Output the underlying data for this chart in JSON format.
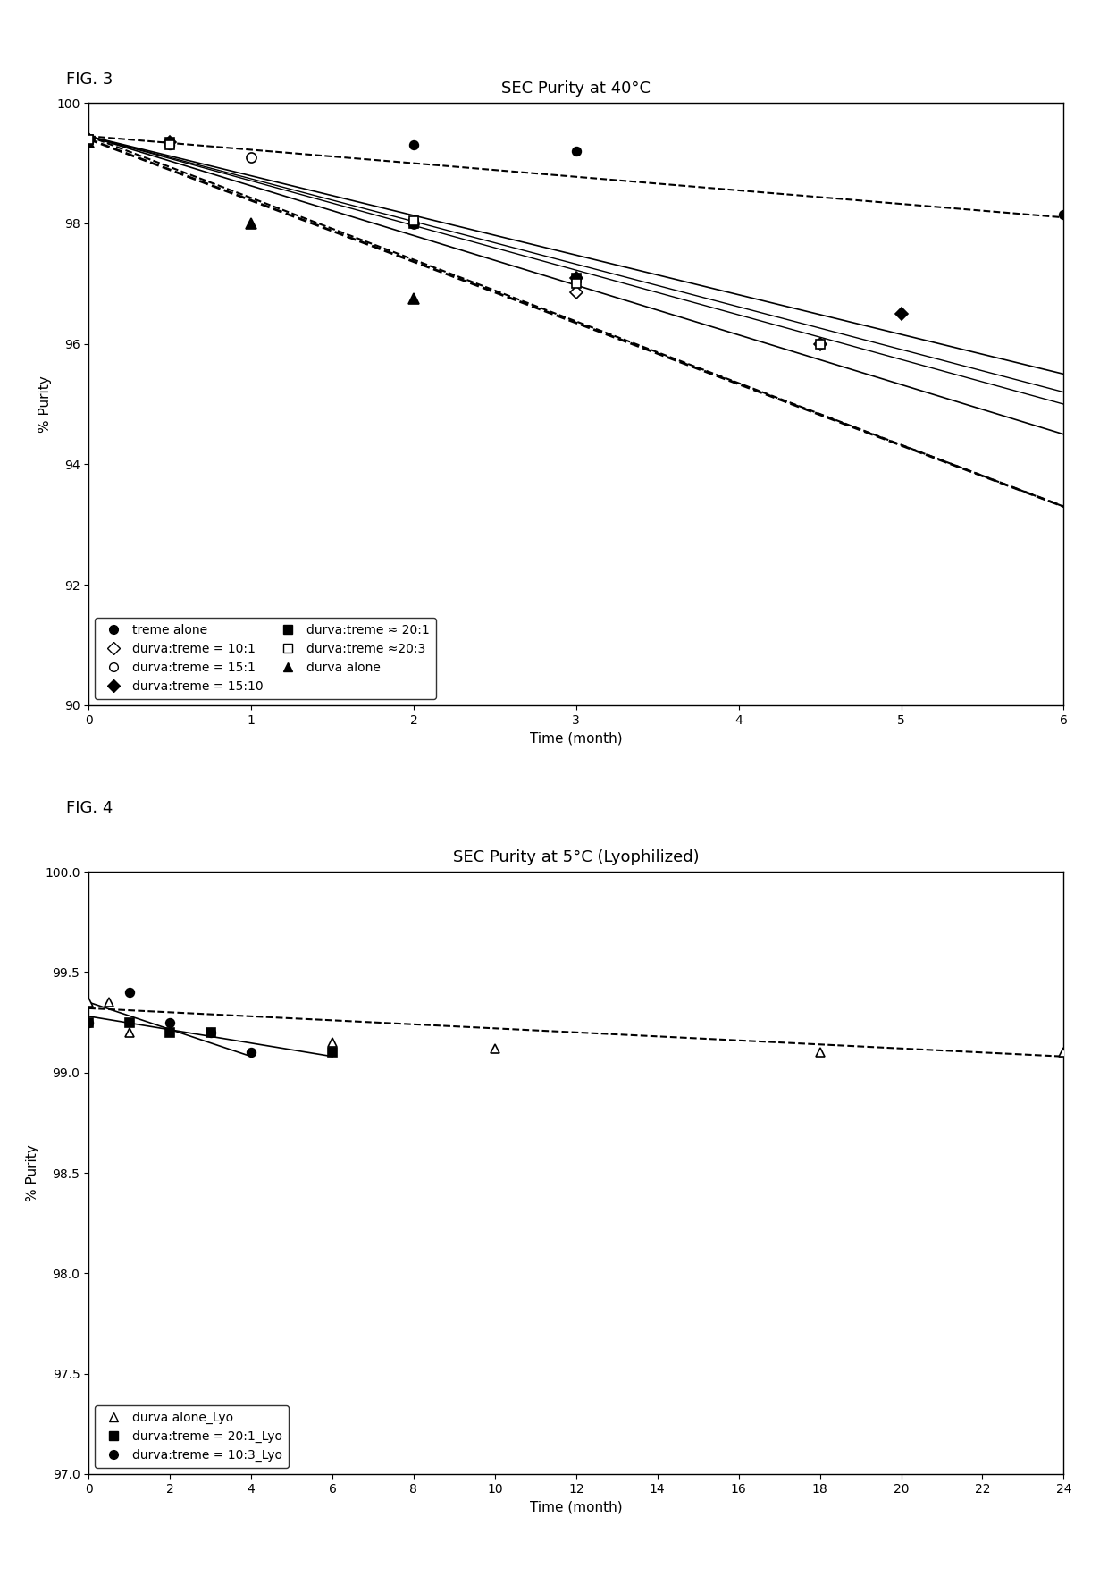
{
  "fig3": {
    "title": "SEC Purity at 40°C",
    "xlabel": "Time (month)",
    "ylabel": "% Purity",
    "xlim": [
      0,
      6
    ],
    "ylim": [
      90.0,
      100.0
    ],
    "yticks": [
      90.0,
      92.0,
      94.0,
      96.0,
      98.0,
      100.0
    ],
    "xticks": [
      0,
      1,
      2,
      3,
      4,
      5,
      6
    ],
    "series": [
      {
        "label": "treme alone",
        "x": [
          0,
          0.5,
          2,
          3,
          6
        ],
        "y": [
          99.4,
          99.3,
          99.3,
          99.2,
          98.15
        ],
        "marker": "o",
        "fillstyle": "full",
        "color": "black",
        "markersize": 7,
        "linestyle": "--",
        "linewidth": 1.5,
        "trend": [
          0,
          6,
          99.45,
          98.1
        ]
      },
      {
        "label": "durva:treme = 15:1",
        "x": [
          0,
          1,
          2
        ],
        "y": [
          99.4,
          99.1,
          98.0
        ],
        "marker": "o",
        "fillstyle": "none",
        "color": "black",
        "markersize": 8,
        "linestyle": "--",
        "linewidth": 1.5,
        "trend": [
          0,
          6,
          99.45,
          93.3
        ]
      },
      {
        "label": "durva:treme = 20:1",
        "x": [
          0,
          0.5,
          2,
          3
        ],
        "y": [
          99.4,
          99.35,
          98.0,
          97.1
        ],
        "marker": "s",
        "fillstyle": "full",
        "color": "black",
        "markersize": 7,
        "linestyle": "-",
        "linewidth": 1.2,
        "trend": [
          0,
          6,
          99.45,
          94.5
        ]
      },
      {
        "label": "durva alone",
        "x": [
          0,
          1,
          2
        ],
        "y": [
          99.35,
          98.0,
          96.75
        ],
        "marker": "^",
        "fillstyle": "full",
        "color": "black",
        "markersize": 8,
        "linestyle": "--",
        "linewidth": 2.0,
        "trend": [
          0,
          6,
          99.4,
          93.3
        ]
      },
      {
        "label": "durva:treme = 10:1",
        "x": [
          0,
          3,
          4.5
        ],
        "y": [
          99.4,
          96.85,
          96.0
        ],
        "marker": "D",
        "fillstyle": "none",
        "color": "black",
        "markersize": 7,
        "linestyle": "-",
        "linewidth": 1.0,
        "trend": [
          0,
          6,
          99.45,
          95.0
        ]
      },
      {
        "label": "durva:treme = 15:10",
        "x": [
          0,
          0.5,
          3,
          5
        ],
        "y": [
          99.4,
          99.35,
          97.1,
          96.5
        ],
        "marker": "D",
        "fillstyle": "full",
        "color": "black",
        "markersize": 7,
        "linestyle": "-",
        "linewidth": 1.2,
        "trend": [
          0,
          6,
          99.45,
          95.5
        ]
      },
      {
        "label": "durva:treme =20:3",
        "x": [
          0,
          0.5,
          2,
          3,
          4.5
        ],
        "y": [
          99.4,
          99.3,
          98.05,
          97.0,
          96.0
        ],
        "marker": "s",
        "fillstyle": "none",
        "color": "black",
        "markersize": 7,
        "linestyle": "-",
        "linewidth": 1.0,
        "trend": [
          0,
          6,
          99.45,
          95.2
        ]
      }
    ]
  },
  "fig4": {
    "title": "SEC Purity at 5°C (Lyophilized)",
    "xlabel": "Time (month)",
    "ylabel": "% Purity",
    "xlim": [
      0,
      24
    ],
    "ylim": [
      97.0,
      100.0
    ],
    "yticks": [
      97.0,
      97.5,
      98.0,
      98.5,
      99.0,
      99.5,
      100.0
    ],
    "xticks": [
      0,
      2,
      4,
      6,
      8,
      10,
      12,
      14,
      16,
      18,
      20,
      22,
      24
    ],
    "series": [
      {
        "label": "durva alone_Lyo",
        "x": [
          0,
          0.5,
          1,
          6,
          10,
          18,
          24
        ],
        "y": [
          99.35,
          99.35,
          99.2,
          99.15,
          99.12,
          99.1,
          99.1
        ],
        "marker": "^",
        "fillstyle": "none",
        "color": "black",
        "markersize": 7,
        "linestyle": "--",
        "linewidth": 1.5,
        "trend": [
          0,
          24,
          99.32,
          99.08
        ]
      },
      {
        "label": "durva:treme = 20:1_Lyo",
        "x": [
          0,
          1,
          2,
          3,
          6
        ],
        "y": [
          99.25,
          99.25,
          99.2,
          99.2,
          99.1
        ],
        "marker": "s",
        "fillstyle": "full",
        "color": "black",
        "markersize": 7,
        "linestyle": "-",
        "linewidth": 1.2,
        "trend": [
          0,
          6,
          99.28,
          99.08
        ]
      },
      {
        "label": "durva:treme = 10:3_Lyo",
        "x": [
          0,
          1,
          2,
          3,
          4
        ],
        "y": [
          99.25,
          99.4,
          99.25,
          99.2,
          99.1
        ],
        "marker": "o",
        "fillstyle": "full",
        "color": "black",
        "markersize": 7,
        "linestyle": "-",
        "linewidth": 1.2,
        "trend": [
          0,
          4,
          99.35,
          99.08
        ]
      }
    ]
  },
  "fig_label_fontsize": 13,
  "axis_label_fontsize": 11,
  "tick_fontsize": 10,
  "legend_fontsize": 10,
  "background_color": "#ffffff",
  "fig3_label": "FIG. 3",
  "fig4_label": "FIG. 4"
}
